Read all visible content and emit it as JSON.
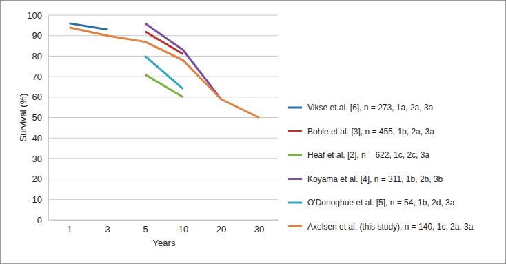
{
  "chart_data": {
    "type": "line",
    "x_label": "Years",
    "y_label": "Survival (%)",
    "categories": [
      "1",
      "3",
      "5",
      "10",
      "20",
      "30"
    ],
    "series": [
      {
        "name": "Vikse et al. [6], n = 273, 1a, 2a, 3a",
        "color": "#2e6da4",
        "values": [
          96,
          93,
          null,
          null,
          null,
          null
        ]
      },
      {
        "name": "Bohle et al. [3], n = 455, 1b, 2a, 3a",
        "color": "#b8312f",
        "values": [
          null,
          null,
          92,
          81,
          null,
          null
        ]
      },
      {
        "name": "Heaf et al. [2], n = 622, 1c, 2c, 3a",
        "color": "#7cb342",
        "values": [
          null,
          null,
          71,
          60,
          null,
          null
        ]
      },
      {
        "name": "Koyama et al. [4], n = 311, 1b, 2b, 3b",
        "color": "#7b4f9d",
        "values": [
          null,
          null,
          96,
          83,
          59,
          null
        ]
      },
      {
        "name": "O'Donoghue et al. [5], n = 54, 1b, 2d, 3a",
        "color": "#31a5c2",
        "values": [
          null,
          null,
          80,
          64,
          null,
          null
        ]
      },
      {
        "name": "Axelsen et al. (this study), n = 140, 1c, 2a, 3a",
        "color": "#e2803e",
        "values": [
          94,
          90,
          87,
          78,
          59,
          50
        ]
      }
    ],
    "ylim": [
      0,
      100
    ],
    "yticks": [
      0,
      10,
      20,
      30,
      40,
      50,
      60,
      70,
      80,
      90,
      100
    ],
    "grid": true,
    "legend": "right"
  }
}
